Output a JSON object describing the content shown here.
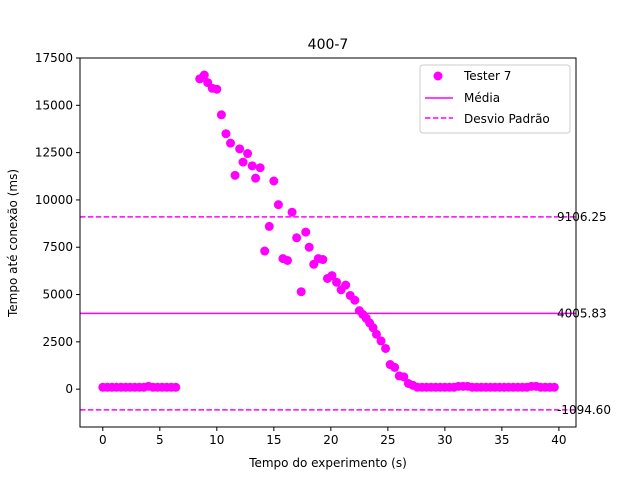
{
  "chart_data": {
    "type": "scatter",
    "title": "400-7",
    "xlabel": "Tempo do experimento (s)",
    "ylabel": "Tempo até conexão (ms)",
    "xlim": [
      -2.0,
      41.5
    ],
    "ylim": [
      -2000,
      17500
    ],
    "xticks": [
      0,
      5,
      10,
      15,
      20,
      25,
      30,
      35,
      40
    ],
    "yticks": [
      0,
      2500,
      5000,
      7500,
      10000,
      12500,
      15000,
      17500
    ],
    "grid": false,
    "legend_position": "top-right",
    "colors": {
      "series": "#ff00ff"
    },
    "series": [
      {
        "name": "Tester 7",
        "kind": "scatter",
        "points": [
          [
            0.0,
            100
          ],
          [
            0.4,
            100
          ],
          [
            0.8,
            100
          ],
          [
            1.2,
            100
          ],
          [
            1.6,
            100
          ],
          [
            2.0,
            100
          ],
          [
            2.4,
            100
          ],
          [
            2.8,
            100
          ],
          [
            3.2,
            100
          ],
          [
            3.6,
            100
          ],
          [
            4.0,
            150
          ],
          [
            4.4,
            100
          ],
          [
            4.8,
            100
          ],
          [
            5.2,
            100
          ],
          [
            5.6,
            100
          ],
          [
            6.0,
            100
          ],
          [
            6.4,
            100
          ],
          [
            8.5,
            16400
          ],
          [
            8.9,
            16600
          ],
          [
            9.2,
            16200
          ],
          [
            9.6,
            15900
          ],
          [
            10.0,
            15850
          ],
          [
            10.4,
            14500
          ],
          [
            10.8,
            13500
          ],
          [
            11.2,
            13000
          ],
          [
            11.6,
            11300
          ],
          [
            12.0,
            12700
          ],
          [
            12.3,
            12000
          ],
          [
            12.7,
            12450
          ],
          [
            13.1,
            11800
          ],
          [
            13.4,
            11150
          ],
          [
            13.8,
            11700
          ],
          [
            14.2,
            7300
          ],
          [
            14.6,
            8600
          ],
          [
            15.0,
            11000
          ],
          [
            15.4,
            9750
          ],
          [
            15.8,
            6900
          ],
          [
            16.2,
            6800
          ],
          [
            16.6,
            9350
          ],
          [
            17.0,
            8000
          ],
          [
            17.4,
            5150
          ],
          [
            17.8,
            8300
          ],
          [
            18.1,
            7500
          ],
          [
            18.5,
            6600
          ],
          [
            18.9,
            6900
          ],
          [
            19.3,
            6850
          ],
          [
            19.7,
            5850
          ],
          [
            20.1,
            6000
          ],
          [
            20.5,
            5650
          ],
          [
            20.9,
            5250
          ],
          [
            21.3,
            5500
          ],
          [
            21.7,
            4950
          ],
          [
            22.1,
            4700
          ],
          [
            22.5,
            4150
          ],
          [
            22.8,
            3950
          ],
          [
            23.1,
            3750
          ],
          [
            23.4,
            3500
          ],
          [
            23.7,
            3250
          ],
          [
            24.0,
            2900
          ],
          [
            24.4,
            2550
          ],
          [
            24.8,
            2150
          ],
          [
            25.2,
            1300
          ],
          [
            25.6,
            1150
          ],
          [
            26.0,
            700
          ],
          [
            26.4,
            650
          ],
          [
            26.8,
            300
          ],
          [
            27.2,
            200
          ],
          [
            27.6,
            100
          ],
          [
            28.0,
            100
          ],
          [
            28.4,
            100
          ],
          [
            28.8,
            100
          ],
          [
            29.2,
            100
          ],
          [
            29.6,
            100
          ],
          [
            30.0,
            100
          ],
          [
            30.4,
            100
          ],
          [
            30.8,
            100
          ],
          [
            31.2,
            150
          ],
          [
            31.6,
            150
          ],
          [
            32.0,
            150
          ],
          [
            32.4,
            100
          ],
          [
            32.8,
            100
          ],
          [
            33.2,
            100
          ],
          [
            33.6,
            100
          ],
          [
            34.0,
            100
          ],
          [
            34.4,
            100
          ],
          [
            34.8,
            100
          ],
          [
            35.2,
            100
          ],
          [
            35.6,
            100
          ],
          [
            36.0,
            100
          ],
          [
            36.4,
            100
          ],
          [
            36.8,
            100
          ],
          [
            37.2,
            100
          ],
          [
            37.6,
            150
          ],
          [
            38.0,
            150
          ],
          [
            38.4,
            100
          ],
          [
            38.8,
            100
          ],
          [
            39.2,
            100
          ],
          [
            39.6,
            100
          ]
        ]
      },
      {
        "name": "Média",
        "kind": "hline",
        "value": 4005.83,
        "style": "solid"
      },
      {
        "name": "Desvio Padrão",
        "kind": "hline",
        "values": [
          9106.25,
          -1094.6
        ],
        "style": "dashed"
      }
    ],
    "annotations": [
      "9106.25",
      "4005.83",
      "-1094.60"
    ]
  }
}
